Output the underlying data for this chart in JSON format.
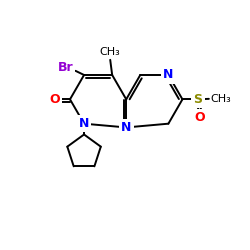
{
  "bg_color": "#ffffff",
  "atom_colors": {
    "N": "#0000ff",
    "O": "#ff0000",
    "Br": "#9400d3",
    "S": "#8b8b00"
  },
  "bond_lw": 1.4,
  "font_size": 8.5,
  "figsize": [
    2.5,
    2.5
  ],
  "dpi": 100
}
